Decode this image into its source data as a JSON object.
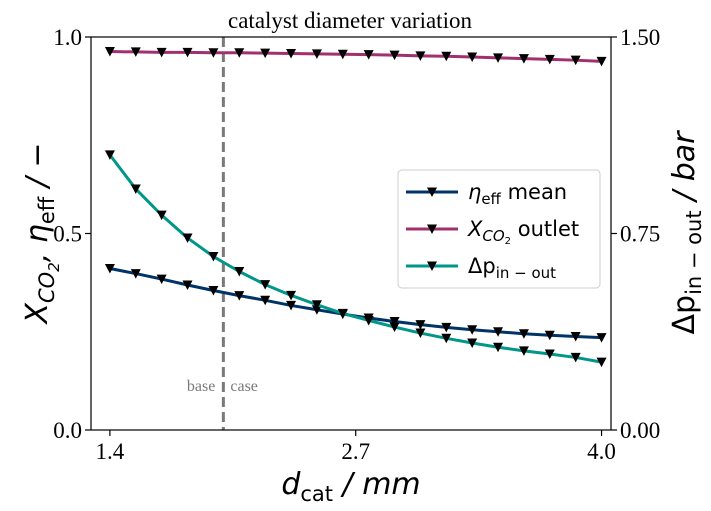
{
  "chart_data": {
    "type": "line",
    "title": "catalyst diameter variation",
    "xlabel": {
      "main": "d",
      "sub": "cat",
      "unit": " / mm"
    },
    "ylabel_left": {
      "x": "X",
      "co2": "CO",
      "co2_sub": "2",
      "sep": ",  ",
      "eta": "η",
      "eff": "eff",
      "unit": " / −"
    },
    "ylabel_right": {
      "delta": "Δp",
      "sub": "in − out",
      "unit": " / bar"
    },
    "xlim": [
      1.3,
      4.05
    ],
    "ylim_left": [
      0.0,
      1.0
    ],
    "ylim_right": [
      0.0,
      1.5
    ],
    "xticks": [
      1.4,
      2.7,
      4.0
    ],
    "xtick_labels": [
      "1.4",
      "2.7",
      "4.0"
    ],
    "yticks_left": [
      0.0,
      0.5,
      1.0
    ],
    "ytick_labels_left": [
      "0.0",
      "0.5",
      "1.0"
    ],
    "yticks_right": [
      0.0,
      0.75,
      1.5
    ],
    "ytick_labels_right": [
      "0.00",
      "0.75",
      "1.50"
    ],
    "x": [
      1.4,
      1.5368,
      1.6737,
      1.8105,
      1.9474,
      2.0842,
      2.2211,
      2.3579,
      2.4947,
      2.6316,
      2.7684,
      2.9053,
      3.0421,
      3.1789,
      3.3158,
      3.4526,
      3.5895,
      3.7263,
      3.8632,
      4.0
    ],
    "series": [
      {
        "name": "ηeff mean",
        "legend_main": "η",
        "legend_sub": "eff",
        "legend_rest": " mean",
        "axis": "left",
        "color": "#003366",
        "values": [
          0.411,
          0.398,
          0.384,
          0.369,
          0.355,
          0.342,
          0.33,
          0.317,
          0.306,
          0.295,
          0.285,
          0.276,
          0.268,
          0.261,
          0.255,
          0.25,
          0.245,
          0.241,
          0.238,
          0.235
        ]
      },
      {
        "name": "XCO2 outlet",
        "legend_main": "X",
        "legend_sub": "CO",
        "legend_subsub": "2",
        "legend_rest": " outlet",
        "axis": "left",
        "color": "#a0306f",
        "values": [
          0.963,
          0.962,
          0.961,
          0.961,
          0.96,
          0.96,
          0.959,
          0.958,
          0.957,
          0.956,
          0.955,
          0.954,
          0.952,
          0.951,
          0.949,
          0.947,
          0.945,
          0.943,
          0.941,
          0.938
        ]
      },
      {
        "name": "Δpin−out",
        "legend_main": "Δp",
        "legend_sub": "in − out",
        "legend_rest": "",
        "axis": "right",
        "color": "#009688",
        "values": [
          1.05,
          0.92,
          0.82,
          0.733,
          0.662,
          0.605,
          0.555,
          0.514,
          0.478,
          0.445,
          0.418,
          0.393,
          0.37,
          0.35,
          0.332,
          0.316,
          0.302,
          0.29,
          0.277,
          0.259
        ]
      }
    ],
    "reference_line": {
      "x": 2.0,
      "label_left": "base",
      "label_right": "case",
      "style": "dashed",
      "color": "#7a7a7a"
    },
    "legend_position": "center-right",
    "grid": false,
    "marker": "triangle-down",
    "marker_color": "#000000"
  }
}
